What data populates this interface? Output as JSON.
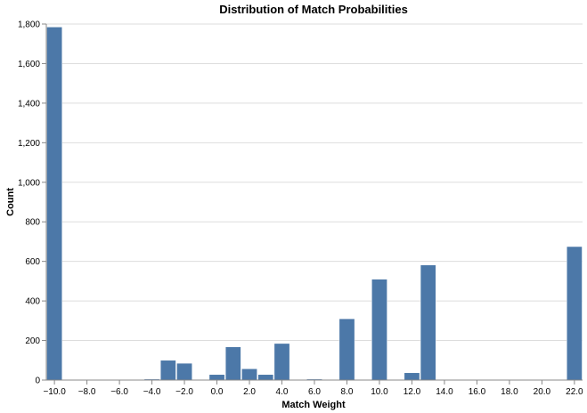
{
  "chart_data": {
    "type": "bar",
    "title": "Distribution of Match Probabilities",
    "xlabel": "Match Weight",
    "ylabel": "Count",
    "xlim": [
      -10.5,
      22.5
    ],
    "ylim": [
      0,
      1800
    ],
    "bin_width": 1,
    "color": "#4c78a8",
    "grid": true,
    "x_ticks": [
      "-10.0",
      "-8.0",
      "-6.0",
      "-4.0",
      "-2.0",
      "0.0",
      "2.0",
      "4.0",
      "6.0",
      "8.0",
      "10.0",
      "12.0",
      "14.0",
      "16.0",
      "18.0",
      "20.0",
      "22.0"
    ],
    "x_tick_values": [
      -10,
      -8,
      -6,
      -4,
      -2,
      0,
      2,
      4,
      6,
      8,
      10,
      12,
      14,
      16,
      18,
      20,
      22
    ],
    "y_ticks": [
      "0",
      "200",
      "400",
      "600",
      "800",
      "1,000",
      "1,200",
      "1,400",
      "1,600",
      "1,800"
    ],
    "y_tick_values": [
      0,
      200,
      400,
      600,
      800,
      1000,
      1200,
      1400,
      1600,
      1800
    ],
    "x": [
      -10,
      -4,
      -3,
      -2,
      0,
      1,
      2,
      3,
      4,
      6,
      8,
      10,
      12,
      13,
      22
    ],
    "values": [
      1785,
      5,
      100,
      85,
      28,
      168,
      57,
      28,
      185,
      5,
      310,
      510,
      37,
      582,
      675
    ]
  }
}
